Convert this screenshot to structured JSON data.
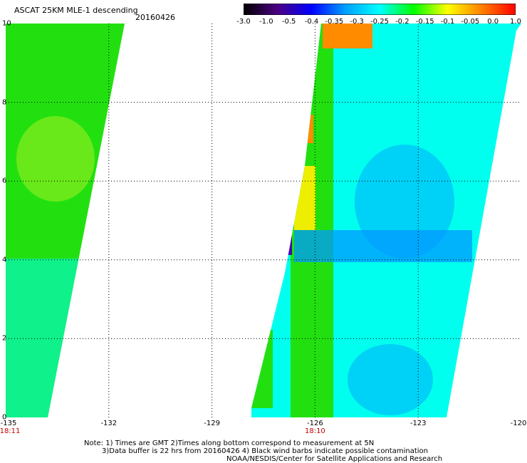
{
  "header": {
    "title": "ASCAT 25KM MLE-1 descending",
    "date": "20160426"
  },
  "colorbar": {
    "stops": [
      "#000000",
      "#4b0082",
      "#0000ff",
      "#00a0ff",
      "#00ffff",
      "#00ff00",
      "#ffff00",
      "#ff8000",
      "#ff0000"
    ],
    "labels": [
      "-3.0",
      "-1.0",
      "-0.5",
      "-0.4",
      "-0.35",
      "-0.3",
      "-0.25",
      "-0.2",
      "-0.15",
      "-0.1",
      "-0.05",
      "0.0",
      "1.0"
    ]
  },
  "axes": {
    "y_ticks": [
      "0",
      "2",
      "4",
      "6",
      "8",
      "10"
    ],
    "x_ticks": [
      "-135",
      "-132",
      "-129",
      "-126",
      "-123",
      "-120"
    ],
    "time_labels": [
      {
        "text": "18:11",
        "lon": -135
      },
      {
        "text": "18:10",
        "lon": -126
      }
    ]
  },
  "map": {
    "lon_range": [
      -135,
      -120
    ],
    "lat_range": [
      0,
      10
    ],
    "colors": {
      "green": "#22e010",
      "cyan": "#00ffee",
      "blue": "#0099ff",
      "yellow": "#eeee00",
      "orange": "#ff8c00",
      "purple": "#4b00b0"
    }
  },
  "notes": [
    "Note: 1) Times are GMT 2)Times along bottom correspond to measurement at 5N",
    "3)Data buffer is 22 hrs from 20160426 4) Black wind barbs indicate possible contamination",
    "NOAA/NESDIS/Center for Satellite Applications and Research"
  ]
}
